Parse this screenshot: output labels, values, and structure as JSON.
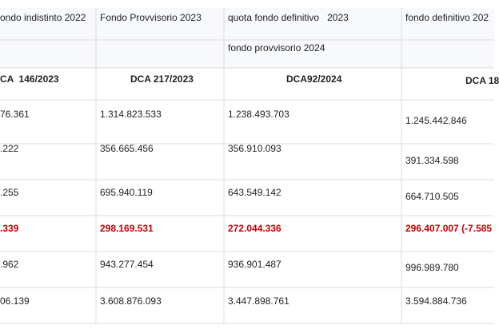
{
  "table": {
    "columns": [
      {
        "header": "ondo indistinto 2022",
        "dca": "CA  146/2023",
        "values": [
          "76.361",
          ".222",
          ".255",
          ".339",
          ".962",
          "06.139"
        ]
      },
      {
        "header": "Fondo Provvisorio 2023",
        "dca": "DCA 217/2023",
        "values": [
          "1.314.823.533",
          "356.665.456",
          "695.940.119",
          "298.169.531",
          "943.277.454",
          "3.608.876.093"
        ]
      },
      {
        "header": "quota fondo definitivo   2023",
        "subheader": "fondo provvisorio 2024",
        "dca": "DCA92/2024",
        "values": [
          "1.238.493.703",
          "356.910.093",
          "643.549.142",
          "272.044.336",
          "936.901.487",
          "3.447.898.761"
        ]
      },
      {
        "header": "fondo definitivo 202",
        "dca": "DCA 18",
        "values": [
          "1.245.442.846",
          "391.334.598",
          "664.710.505",
          "296.407.007 (-7.585",
          "996.989.780",
          "3.594.884.736"
        ]
      }
    ],
    "highlight_row": 3
  }
}
